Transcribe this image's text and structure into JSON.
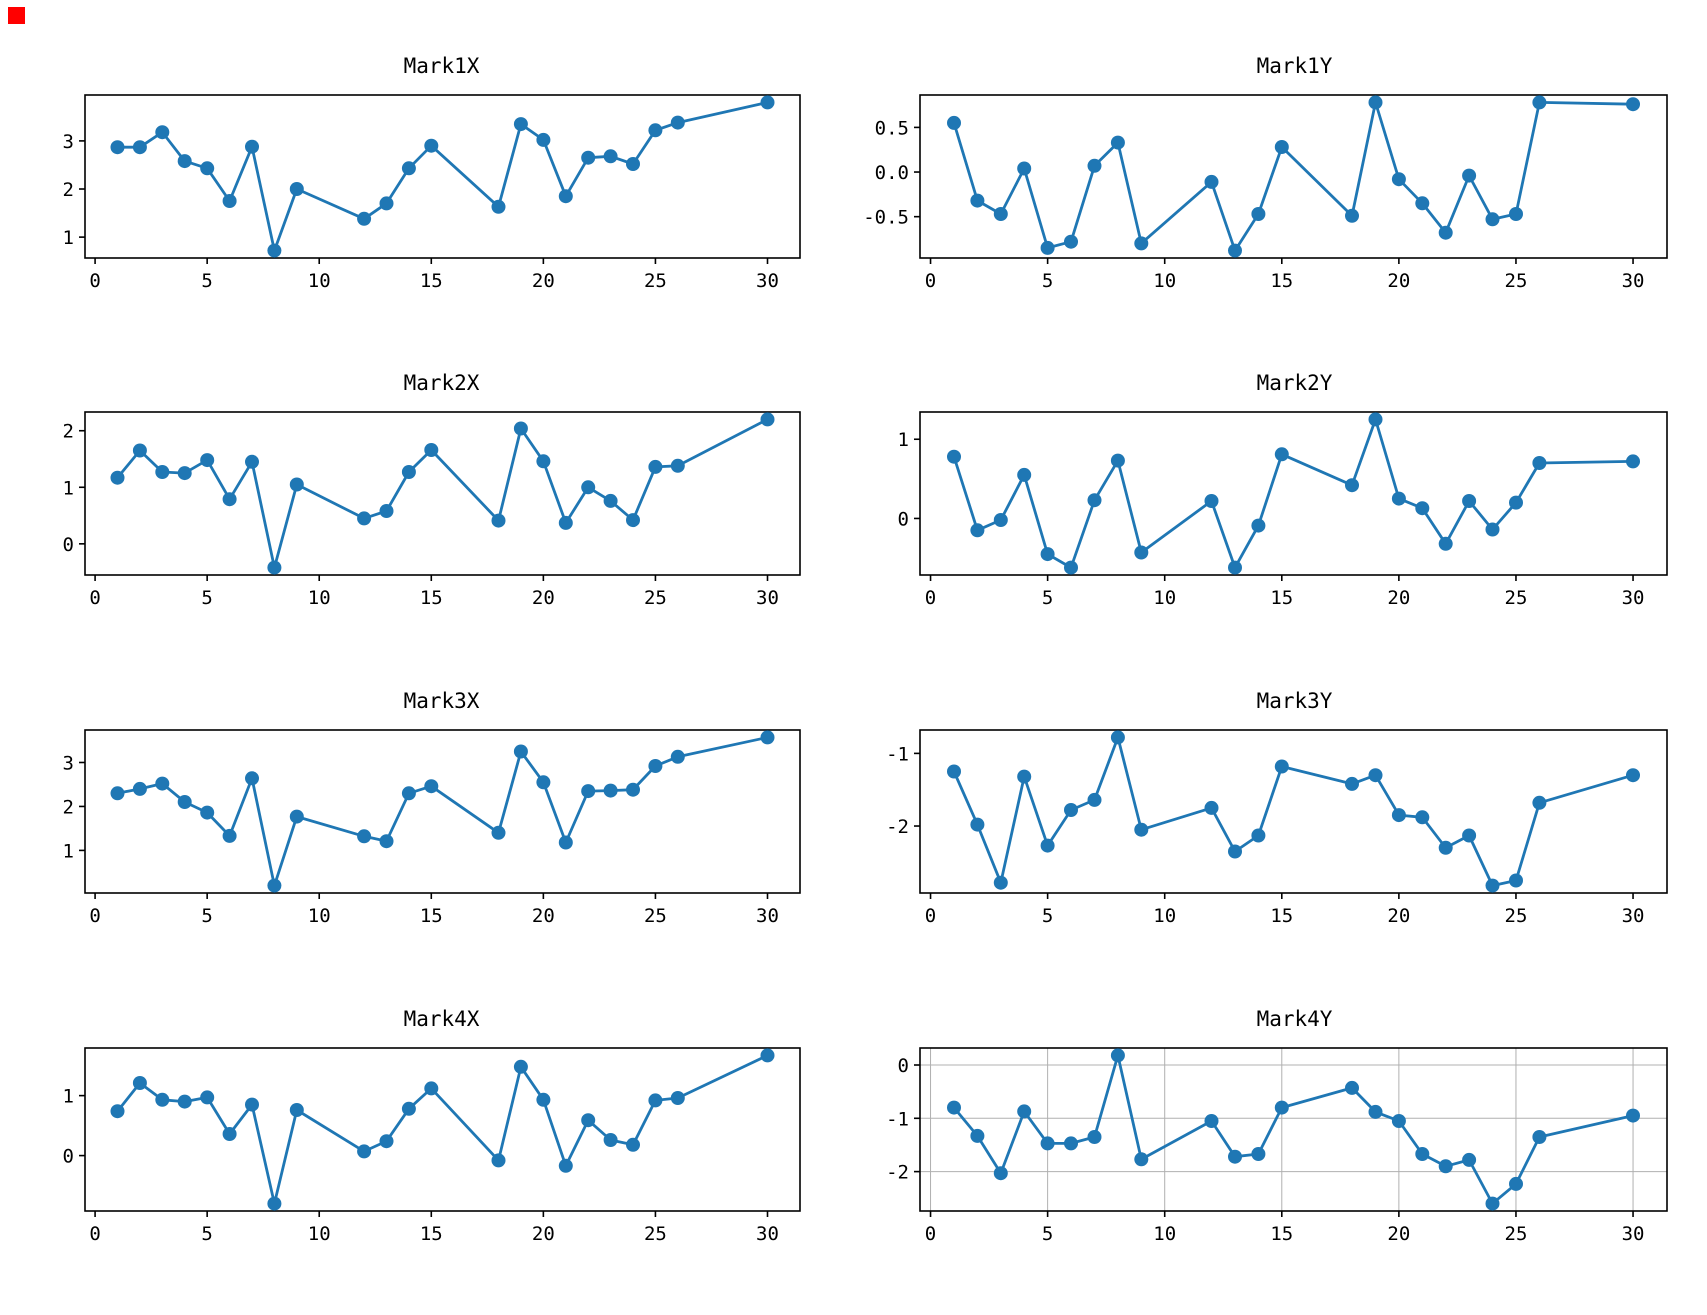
{
  "figure": {
    "background": "#ffffff",
    "indicator_color": "#ff0000"
  },
  "chart_data": [
    {
      "type": "line",
      "title": "Mark1X",
      "color": "#1f77b4",
      "marker": "circle",
      "grid": false,
      "x": [
        1,
        2,
        3,
        4,
        5,
        6,
        7,
        8,
        9,
        12,
        13,
        14,
        15,
        18,
        19,
        20,
        21,
        22,
        23,
        24,
        25,
        26,
        30
      ],
      "y": [
        2.87,
        2.87,
        3.18,
        2.58,
        2.43,
        1.75,
        2.88,
        0.72,
        2.0,
        1.38,
        1.7,
        2.43,
        2.9,
        1.63,
        3.35,
        3.02,
        1.85,
        2.65,
        2.68,
        2.52,
        3.22,
        3.38,
        3.8
      ],
      "xlim": [
        -0.45,
        31.45
      ],
      "ylim": [
        0.566,
        3.954
      ],
      "xticks": [
        0,
        5,
        10,
        15,
        20,
        25,
        30
      ],
      "xtick_labels": [
        "0",
        "5",
        "10",
        "15",
        "20",
        "25",
        "30"
      ],
      "ytick_values": [
        1,
        2,
        3
      ],
      "ytick_labels": [
        "1",
        "2",
        "3"
      ]
    },
    {
      "type": "line",
      "title": "Mark1Y",
      "color": "#1f77b4",
      "marker": "circle",
      "grid": false,
      "x": [
        1,
        2,
        3,
        4,
        5,
        6,
        7,
        8,
        9,
        12,
        13,
        14,
        15,
        18,
        19,
        20,
        21,
        22,
        23,
        24,
        25,
        26,
        30
      ],
      "y": [
        0.55,
        -0.32,
        -0.47,
        0.04,
        -0.85,
        -0.78,
        0.07,
        0.33,
        -0.8,
        -0.11,
        -0.88,
        -0.47,
        0.28,
        -0.49,
        0.78,
        -0.08,
        -0.35,
        -0.68,
        -0.04,
        -0.53,
        -0.47,
        0.78,
        0.76
      ],
      "xlim": [
        -0.45,
        31.45
      ],
      "ylim": [
        -0.963,
        0.863
      ],
      "xticks": [
        0,
        5,
        10,
        15,
        20,
        25,
        30
      ],
      "xtick_labels": [
        "0",
        "5",
        "10",
        "15",
        "20",
        "25",
        "30"
      ],
      "ytick_values": [
        -0.5,
        0.0,
        0.5
      ],
      "ytick_labels": [
        "-0.5",
        "0.0",
        "0.5"
      ]
    },
    {
      "type": "line",
      "title": "Mark2X",
      "color": "#1f77b4",
      "marker": "circle",
      "grid": false,
      "x": [
        1,
        2,
        3,
        4,
        5,
        6,
        7,
        8,
        9,
        12,
        13,
        14,
        15,
        18,
        19,
        20,
        21,
        22,
        23,
        24,
        25,
        26,
        30
      ],
      "y": [
        1.17,
        1.65,
        1.27,
        1.25,
        1.48,
        0.79,
        1.45,
        -0.42,
        1.05,
        0.45,
        0.58,
        1.27,
        1.66,
        0.41,
        2.04,
        1.46,
        0.37,
        1.0,
        0.76,
        0.42,
        1.36,
        1.38,
        2.2
      ],
      "xlim": [
        -0.45,
        31.45
      ],
      "ylim": [
        -0.551,
        2.331
      ],
      "xticks": [
        0,
        5,
        10,
        15,
        20,
        25,
        30
      ],
      "xtick_labels": [
        "0",
        "5",
        "10",
        "15",
        "20",
        "25",
        "30"
      ],
      "ytick_values": [
        0,
        1,
        2
      ],
      "ytick_labels": [
        "0",
        "1",
        "2"
      ]
    },
    {
      "type": "line",
      "title": "Mark2Y",
      "color": "#1f77b4",
      "marker": "circle",
      "grid": false,
      "x": [
        1,
        2,
        3,
        4,
        5,
        6,
        7,
        8,
        9,
        12,
        13,
        14,
        15,
        18,
        19,
        20,
        21,
        22,
        23,
        24,
        25,
        26,
        30
      ],
      "y": [
        0.78,
        -0.15,
        -0.02,
        0.55,
        -0.45,
        -0.62,
        0.23,
        0.73,
        -0.43,
        0.22,
        -0.62,
        -0.09,
        0.81,
        0.42,
        1.25,
        0.25,
        0.13,
        -0.32,
        0.22,
        -0.14,
        0.2,
        0.7,
        0.72
      ],
      "xlim": [
        -0.45,
        31.45
      ],
      "ylim": [
        -0.714,
        1.344
      ],
      "xticks": [
        0,
        5,
        10,
        15,
        20,
        25,
        30
      ],
      "xtick_labels": [
        "0",
        "5",
        "10",
        "15",
        "20",
        "25",
        "30"
      ],
      "ytick_values": [
        0,
        1
      ],
      "ytick_labels": [
        "0",
        "1"
      ]
    },
    {
      "type": "line",
      "title": "Mark3X",
      "color": "#1f77b4",
      "marker": "circle",
      "grid": false,
      "x": [
        1,
        2,
        3,
        4,
        5,
        6,
        7,
        8,
        9,
        12,
        13,
        14,
        15,
        18,
        19,
        20,
        21,
        22,
        23,
        24,
        25,
        26,
        30
      ],
      "y": [
        2.3,
        2.4,
        2.52,
        2.1,
        1.86,
        1.33,
        2.64,
        0.2,
        1.77,
        1.32,
        1.21,
        2.3,
        2.46,
        1.4,
        3.25,
        2.55,
        1.18,
        2.35,
        2.36,
        2.38,
        2.92,
        3.13,
        3.57
      ],
      "xlim": [
        -0.45,
        31.45
      ],
      "ylim": [
        0.031,
        3.739
      ],
      "xticks": [
        0,
        5,
        10,
        15,
        20,
        25,
        30
      ],
      "xtick_labels": [
        "0",
        "5",
        "10",
        "15",
        "20",
        "25",
        "30"
      ],
      "ytick_values": [
        1,
        2,
        3
      ],
      "ytick_labels": [
        "1",
        "2",
        "3"
      ]
    },
    {
      "type": "line",
      "title": "Mark3Y",
      "color": "#1f77b4",
      "marker": "circle",
      "grid": false,
      "x": [
        1,
        2,
        3,
        4,
        5,
        6,
        7,
        8,
        9,
        12,
        13,
        14,
        15,
        18,
        19,
        20,
        21,
        22,
        23,
        24,
        25,
        26,
        30
      ],
      "y": [
        -1.25,
        -1.98,
        -2.78,
        -1.32,
        -2.27,
        -1.78,
        -1.64,
        -0.78,
        -2.05,
        -1.75,
        -2.35,
        -2.13,
        -1.18,
        -1.42,
        -1.3,
        -1.85,
        -1.88,
        -2.3,
        -2.13,
        -2.82,
        -2.75,
        -1.68,
        -1.3
      ],
      "xlim": [
        -0.45,
        31.45
      ],
      "ylim": [
        -2.922,
        -0.678
      ],
      "xticks": [
        0,
        5,
        10,
        15,
        20,
        25,
        30
      ],
      "xtick_labels": [
        "0",
        "5",
        "10",
        "15",
        "20",
        "25",
        "30"
      ],
      "ytick_values": [
        -2,
        -1
      ],
      "ytick_labels": [
        "-2",
        "-1"
      ]
    },
    {
      "type": "line",
      "title": "Mark4X",
      "color": "#1f77b4",
      "marker": "circle",
      "grid": false,
      "x": [
        1,
        2,
        3,
        4,
        5,
        6,
        7,
        8,
        9,
        12,
        13,
        14,
        15,
        18,
        19,
        20,
        21,
        22,
        23,
        24,
        25,
        26,
        30
      ],
      "y": [
        0.74,
        1.21,
        0.93,
        0.9,
        0.97,
        0.36,
        0.85,
        -0.8,
        0.76,
        0.07,
        0.24,
        0.78,
        1.12,
        -0.08,
        1.48,
        0.93,
        -0.17,
        0.59,
        0.26,
        0.18,
        0.92,
        0.96,
        1.67
      ],
      "xlim": [
        -0.45,
        31.45
      ],
      "ylim": [
        -0.924,
        1.794
      ],
      "xticks": [
        0,
        5,
        10,
        15,
        20,
        25,
        30
      ],
      "xtick_labels": [
        "0",
        "5",
        "10",
        "15",
        "20",
        "25",
        "30"
      ],
      "ytick_values": [
        0,
        1
      ],
      "ytick_labels": [
        "0",
        "1"
      ]
    },
    {
      "type": "line",
      "title": "Mark4Y",
      "color": "#1f77b4",
      "marker": "circle",
      "grid": true,
      "grid_color": "#b0b0b0",
      "x": [
        1,
        2,
        3,
        4,
        5,
        6,
        7,
        8,
        9,
        12,
        13,
        14,
        15,
        18,
        19,
        20,
        21,
        22,
        23,
        24,
        25,
        26,
        30
      ],
      "y": [
        -0.8,
        -1.33,
        -2.03,
        -0.87,
        -1.47,
        -1.47,
        -1.35,
        0.18,
        -1.77,
        -1.05,
        -1.72,
        -1.67,
        -0.8,
        -0.43,
        -0.88,
        -1.05,
        -1.67,
        -1.9,
        -1.78,
        -2.6,
        -2.23,
        -1.35,
        -0.95
      ],
      "xlim": [
        -0.45,
        31.45
      ],
      "ylim": [
        -2.739,
        0.319
      ],
      "xticks": [
        0,
        5,
        10,
        15,
        20,
        25,
        30
      ],
      "xtick_labels": [
        "0",
        "5",
        "10",
        "15",
        "20",
        "25",
        "30"
      ],
      "ytick_values": [
        -2,
        -1,
        0
      ],
      "ytick_labels": [
        "-2",
        "-1",
        "0"
      ]
    }
  ]
}
